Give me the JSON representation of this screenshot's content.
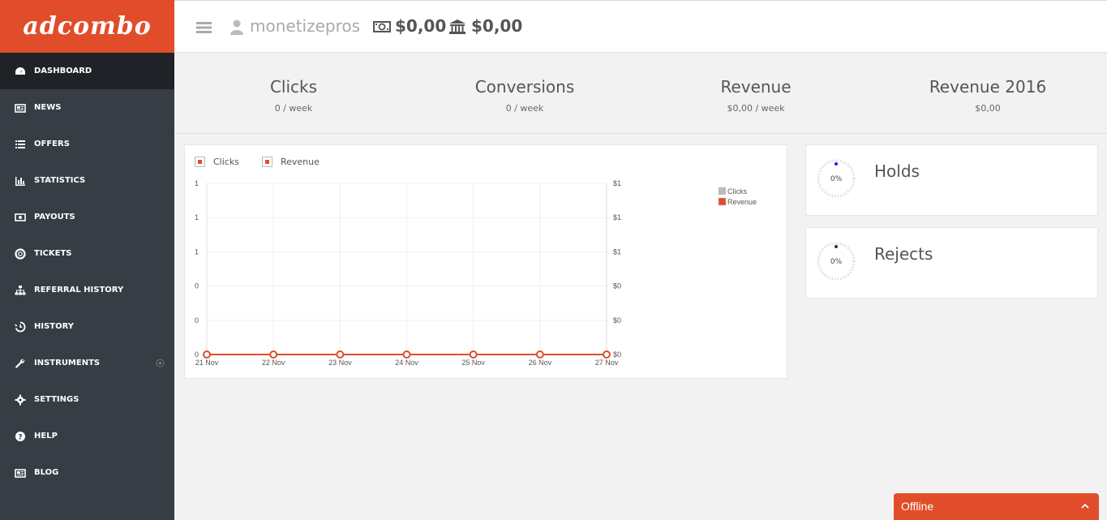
{
  "brand": {
    "logo_text": "adcombo",
    "accent": "#e14d2a"
  },
  "sidebar": {
    "items": [
      {
        "label": "DASHBOARD",
        "icon": "dashboard-icon",
        "active": true
      },
      {
        "label": "NEWS",
        "icon": "newspaper-icon"
      },
      {
        "label": "OFFERS",
        "icon": "list-icon"
      },
      {
        "label": "STATISTICS",
        "icon": "bar-chart-icon"
      },
      {
        "label": "PAYOUTS",
        "icon": "money-icon"
      },
      {
        "label": "TICKETS",
        "icon": "lifebuoy-icon"
      },
      {
        "label": "REFERRAL HISTORY",
        "icon": "sitemap-icon"
      },
      {
        "label": "HISTORY",
        "icon": "history-icon"
      },
      {
        "label": "INSTRUMENTS",
        "icon": "wrench-icon",
        "expandable": true
      },
      {
        "label": "SETTINGS",
        "icon": "gear-icon"
      },
      {
        "label": "HELP",
        "icon": "question-icon"
      },
      {
        "label": "BLOG",
        "icon": "newspaper-icon"
      }
    ]
  },
  "header": {
    "username": "monetizepros",
    "balance": "$0,00",
    "hold_balance": "$0,00"
  },
  "stats": [
    {
      "title": "Clicks",
      "sub": "0 / week"
    },
    {
      "title": "Conversions",
      "sub": "0 / week"
    },
    {
      "title": "Revenue",
      "sub": "$0,00 / week"
    },
    {
      "title": "Revenue 2016",
      "sub": "$0,00"
    }
  ],
  "chart_toggles": {
    "clicks": "Clicks",
    "revenue": "Revenue"
  },
  "chart_data": {
    "type": "line",
    "categories": [
      "21 Nov",
      "22 Nov",
      "23 Nov",
      "24 Nov",
      "25 Nov",
      "26 Nov",
      "27 Nov"
    ],
    "series": [
      {
        "name": "Clicks",
        "values": [
          0,
          0,
          0,
          0,
          0,
          0,
          0
        ],
        "color": "#bbbbbb",
        "axis": "left"
      },
      {
        "name": "Revenue",
        "values": [
          0,
          0,
          0,
          0,
          0,
          0,
          0
        ],
        "color": "#e14d2a",
        "axis": "right"
      }
    ],
    "left_ticks": [
      "1",
      "1",
      "1",
      "0",
      "0",
      "0"
    ],
    "right_ticks": [
      "$1",
      "$1",
      "$1",
      "$0",
      "$0",
      "$0"
    ],
    "ylim": [
      0,
      1
    ],
    "grid": true,
    "legend": "top-right"
  },
  "kpis": [
    {
      "title": "Holds",
      "pct": "0%",
      "value": 0,
      "dot_color": "#1a1aff"
    },
    {
      "title": "Rejects",
      "pct": "0%",
      "value": 0,
      "dot_color": "#333333"
    }
  ],
  "chat": {
    "status": "Offline"
  }
}
